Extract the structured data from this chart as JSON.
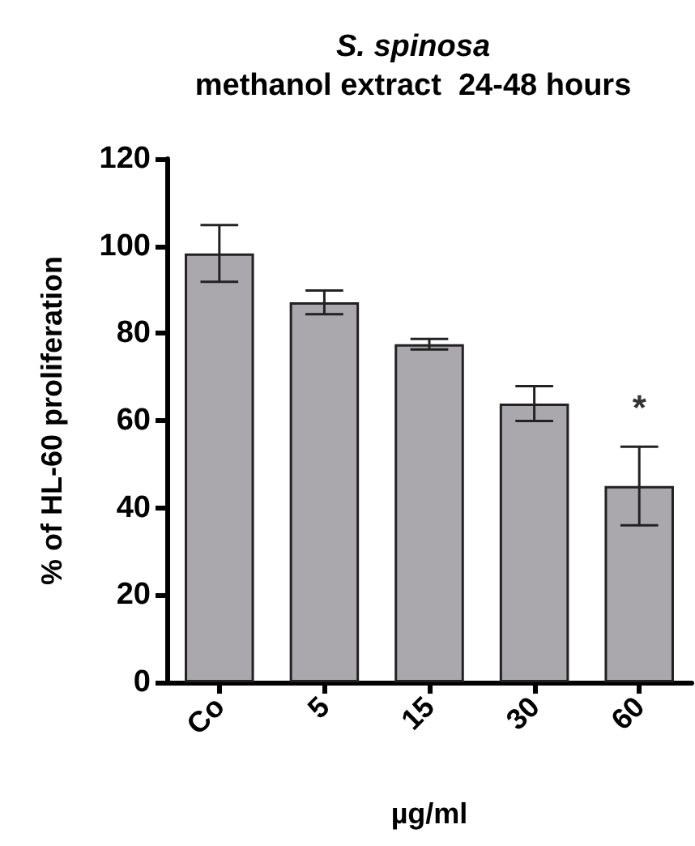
{
  "chart_data": {
    "type": "bar",
    "title": "S. spinosa\nmethanol extract  24-48 hours",
    "xlabel": "µg/ml",
    "ylabel": "% of HL-60 proliferation",
    "categories": [
      "Co",
      "5",
      "15",
      "30",
      "60"
    ],
    "values": [
      98.3,
      87.1,
      77.5,
      63.9,
      45.0
    ],
    "errors": [
      6.5,
      2.7,
      1.2,
      4.0,
      9.0
    ],
    "color": "#aaa8ac",
    "ylim": [
      0,
      120
    ],
    "yticks": [
      0,
      20,
      40,
      60,
      80,
      100,
      120
    ],
    "grid": false,
    "annotations": [
      {
        "text": "*",
        "x": "60",
        "y": 54
      }
    ]
  }
}
